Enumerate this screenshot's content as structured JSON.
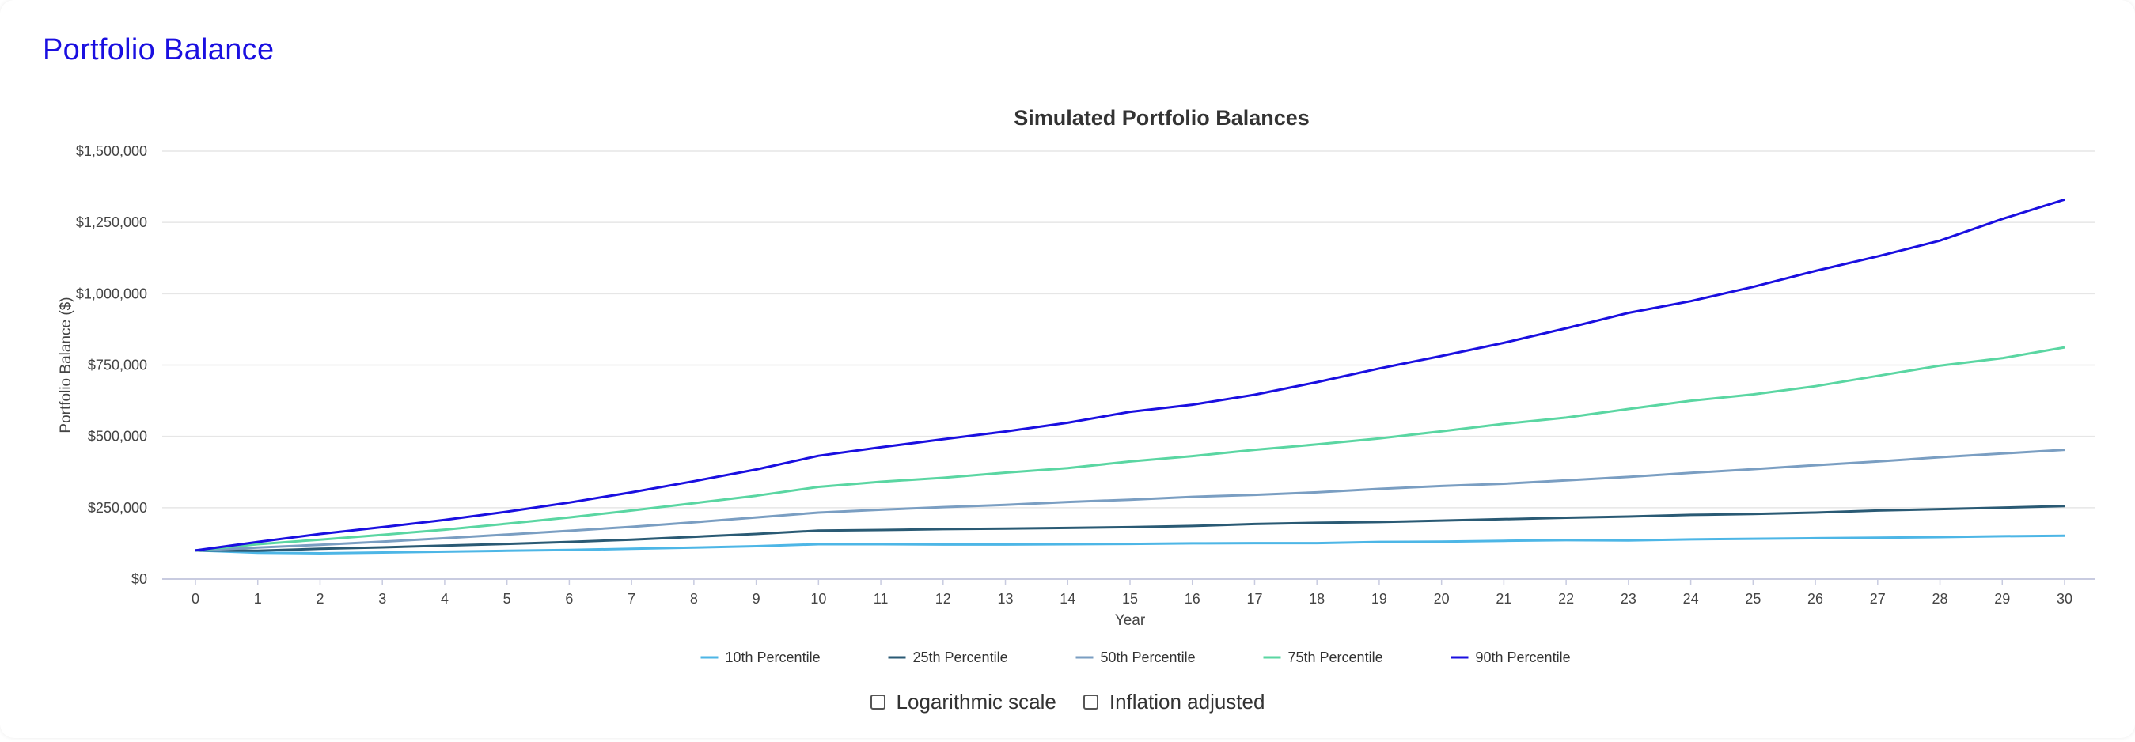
{
  "page": {
    "title": "Portfolio Balance"
  },
  "controls": {
    "log_scale_label": "Logarithmic scale",
    "log_scale_checked": false,
    "inflation_label": "Inflation adjusted",
    "inflation_checked": false
  },
  "chart_data": {
    "type": "line",
    "title": "Simulated Portfolio Balances",
    "xlabel": "Year",
    "ylabel": "Portfolio Balance ($)",
    "ylim": [
      0,
      1500000
    ],
    "yticks": [
      0,
      250000,
      500000,
      750000,
      1000000,
      1250000,
      1500000
    ],
    "ytick_labels": [
      "$0",
      "$250,000",
      "$500,000",
      "$750,000",
      "$1,000,000",
      "$1,250,000",
      "$1,500,000"
    ],
    "x": [
      0,
      1,
      2,
      3,
      4,
      5,
      6,
      7,
      8,
      9,
      10,
      11,
      12,
      13,
      14,
      15,
      16,
      17,
      18,
      19,
      20,
      21,
      22,
      23,
      24,
      25,
      26,
      27,
      28,
      29,
      30
    ],
    "grid": true,
    "legend": "bottom-center",
    "series": [
      {
        "name": "10th Percentile",
        "color": "#4db6e6",
        "values": [
          100000,
          92000,
          90000,
          93000,
          96000,
          99000,
          102000,
          106000,
          110000,
          115000,
          122000,
          122000,
          121000,
          121000,
          122000,
          123000,
          125000,
          126000,
          126000,
          130000,
          131000,
          134000,
          136000,
          135000,
          139000,
          141000,
          143000,
          145000,
          147000,
          150000,
          152000
        ]
      },
      {
        "name": "25th Percentile",
        "color": "#2a5a74",
        "values": [
          100000,
          99000,
          106000,
          111000,
          117000,
          123000,
          130000,
          138000,
          148000,
          158000,
          170000,
          172000,
          175000,
          177000,
          179000,
          182000,
          186000,
          193000,
          197000,
          200000,
          205000,
          210000,
          215000,
          219000,
          225000,
          228000,
          233000,
          240000,
          245000,
          250000,
          256000
        ]
      },
      {
        "name": "50th Percentile",
        "color": "#7a9ec2",
        "values": [
          100000,
          110000,
          120000,
          131000,
          143000,
          156000,
          169000,
          183000,
          199000,
          216000,
          233000,
          243000,
          252000,
          260000,
          270000,
          278000,
          288000,
          295000,
          304000,
          316000,
          326000,
          334000,
          346000,
          358000,
          372000,
          385000,
          399000,
          412000,
          427000,
          440000,
          453000
        ]
      },
      {
        "name": "75th Percentile",
        "color": "#5ad6a2",
        "values": [
          100000,
          122000,
          138000,
          155000,
          173000,
          194000,
          216000,
          240000,
          266000,
          292000,
          323000,
          341000,
          355000,
          373000,
          389000,
          412000,
          431000,
          453000,
          472000,
          493000,
          518000,
          544000,
          566000,
          596000,
          625000,
          647000,
          676000,
          712000,
          748000,
          774000,
          812000
        ]
      },
      {
        "name": "90th Percentile",
        "color": "#1a0fe0",
        "values": [
          100000,
          130000,
          158000,
          182000,
          207000,
          236000,
          268000,
          304000,
          343000,
          384000,
          432000,
          462000,
          490000,
          517000,
          548000,
          586000,
          611000,
          646000,
          690000,
          738000,
          782000,
          828000,
          879000,
          933000,
          974000,
          1024000,
          1080000,
          1131000,
          1186000,
          1262000,
          1330000
        ]
      }
    ]
  }
}
